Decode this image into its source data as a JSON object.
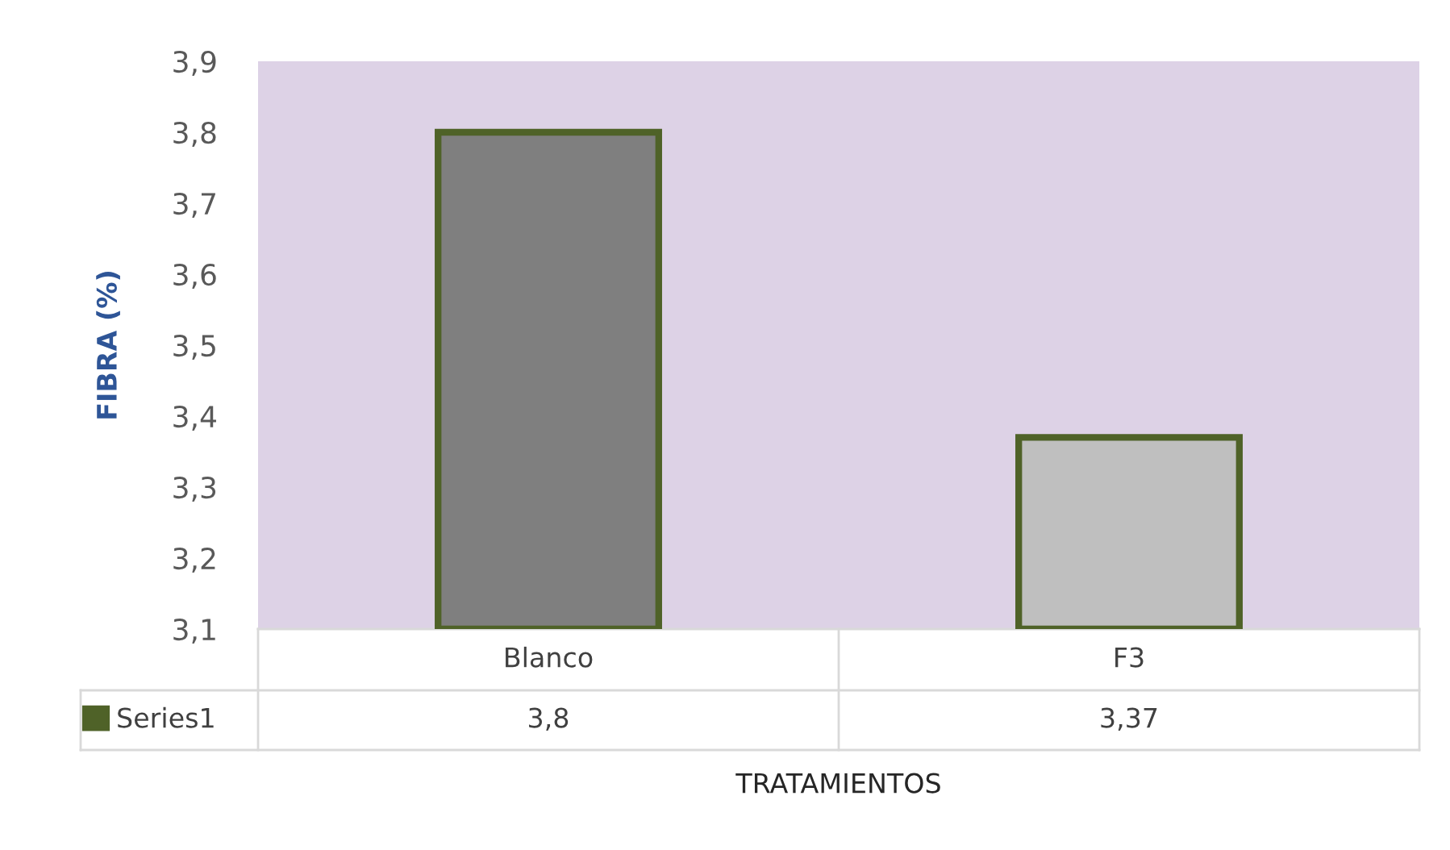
{
  "chart_data": {
    "type": "bar",
    "xlabel": "TRATAMIENTOS",
    "ylabel": "FIBRA (%)",
    "categories": [
      "Blanco",
      "F3"
    ],
    "series": [
      {
        "name": "Series1",
        "color": "#4f6228",
        "colors": [
          "#7f7f7f",
          "#bfbfbf"
        ],
        "values": [
          3.8,
          3.37
        ],
        "value_labels": [
          "3,8",
          "3,37"
        ]
      }
    ],
    "ylim": [
      3.1,
      3.9
    ],
    "yticks": [
      {
        "value": 3.1,
        "label": "3,1"
      },
      {
        "value": 3.2,
        "label": "3,2"
      },
      {
        "value": 3.3,
        "label": "3,3"
      },
      {
        "value": 3.4,
        "label": "3,4"
      },
      {
        "value": 3.5,
        "label": "3,5"
      },
      {
        "value": 3.6,
        "label": "3,6"
      },
      {
        "value": 3.7,
        "label": "3,7"
      },
      {
        "value": 3.8,
        "label": "3,8"
      },
      {
        "value": 3.9,
        "label": "3,9"
      }
    ],
    "grid": false,
    "legend": "bottom"
  }
}
